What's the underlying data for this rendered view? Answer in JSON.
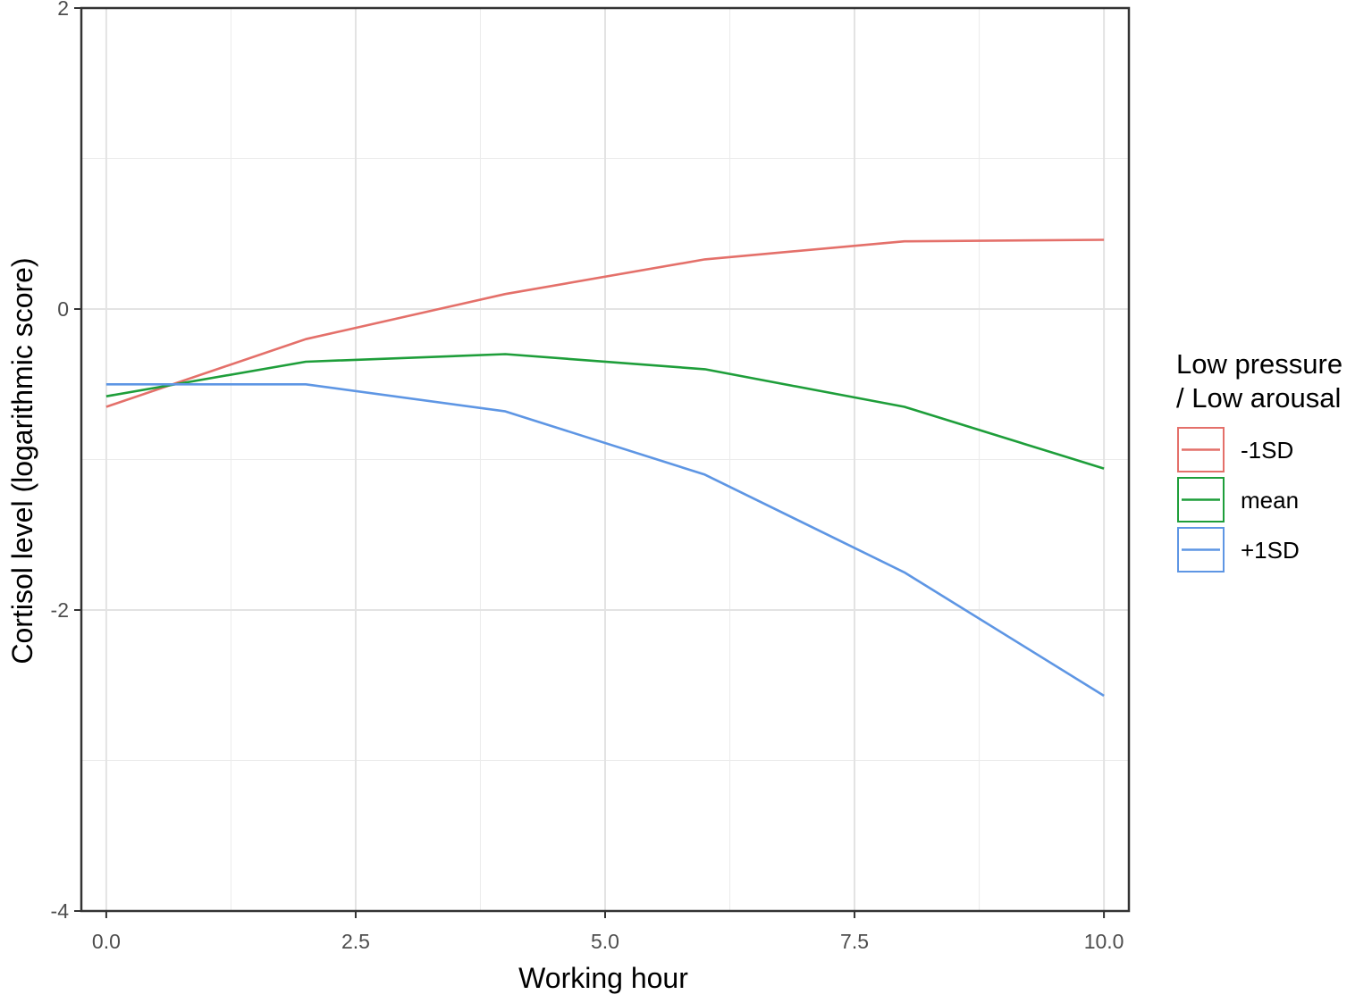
{
  "chart_data": {
    "type": "line",
    "title": "",
    "xlabel": "Working hour",
    "ylabel": "Cortisol level (logarithmic score)",
    "xlim": [
      -0.25,
      10.25
    ],
    "ylim": [
      -4,
      2
    ],
    "x_major_ticks": [
      0.0,
      2.5,
      5.0,
      7.5,
      10.0
    ],
    "x_tick_labels": [
      "0.0",
      "2.5",
      "5.0",
      "7.5",
      "10.0"
    ],
    "x_minor_ticks": [
      1.25,
      3.75,
      6.25,
      8.75
    ],
    "y_major_ticks": [
      -4,
      -2,
      0,
      2
    ],
    "y_tick_labels": [
      "-4",
      "-2",
      "0",
      "2"
    ],
    "y_minor_ticks": [
      -3,
      -1,
      1
    ],
    "grid": true,
    "legend": {
      "title_lines": [
        "Low pressure",
        "/ Low arousal"
      ],
      "placement": "right"
    },
    "series": [
      {
        "name": "-1SD",
        "color": "#E4706A",
        "x": [
          0,
          2,
          4,
          6,
          8,
          10
        ],
        "y": [
          -0.65,
          -0.2,
          0.1,
          0.33,
          0.45,
          0.46
        ]
      },
      {
        "name": "mean",
        "color": "#1E9E3A",
        "x": [
          0,
          2,
          4,
          6,
          8,
          10
        ],
        "y": [
          -0.58,
          -0.35,
          -0.3,
          -0.4,
          -0.65,
          -1.06
        ]
      },
      {
        "name": "+1SD",
        "color": "#5E96E4",
        "x": [
          0,
          2,
          4,
          6,
          8,
          10
        ],
        "y": [
          -0.5,
          -0.5,
          -0.68,
          -1.1,
          -1.75,
          -2.57
        ]
      }
    ]
  }
}
